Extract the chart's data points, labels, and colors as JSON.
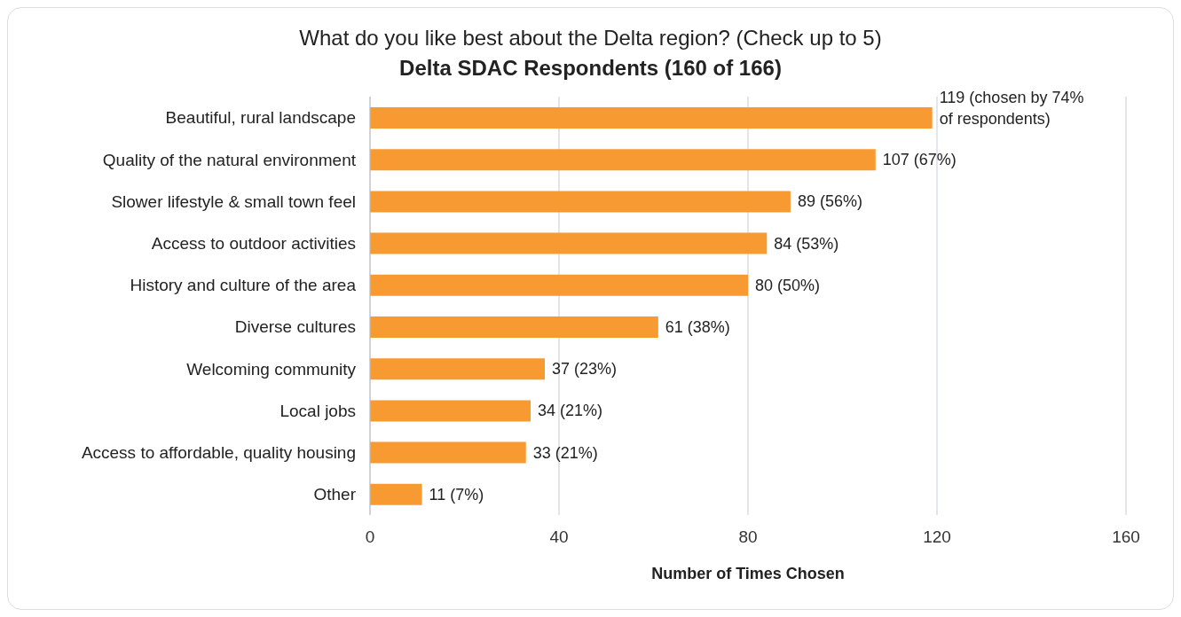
{
  "chart_data": {
    "type": "bar",
    "orientation": "horizontal",
    "title": "What do you like best about the Delta region? (Check up to 5)",
    "subtitle": "Delta SDAC Respondents (160 of 166)",
    "xlabel": "Number of Times Chosen",
    "categories": [
      "Beautiful, rural landscape",
      "Quality of the natural environment",
      "Slower lifestyle & small town feel",
      "Access to outdoor activities",
      "History and culture of the area",
      "Diverse cultures",
      "Welcoming community",
      "Local jobs",
      "Access to affordable, quality housing",
      "Other"
    ],
    "values": [
      119,
      107,
      89,
      84,
      80,
      61,
      37,
      34,
      33,
      11
    ],
    "value_labels": [
      "119 (chosen by 74% of respondents)",
      "107 (67%)",
      "89 (56%)",
      "84 (53%)",
      "80 (50%)",
      "61 (38%)",
      "37 (23%)",
      "34 (21%)",
      "33 (21%)",
      "11 (7%)"
    ],
    "color": "#f79a32",
    "xlim": [
      0,
      160
    ],
    "xticks": [
      0,
      40,
      80,
      120,
      160
    ],
    "grid": "x",
    "legend": false
  }
}
